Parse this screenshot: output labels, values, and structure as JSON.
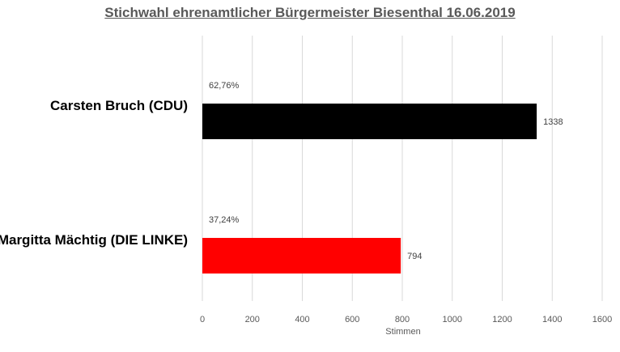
{
  "chart_data": {
    "type": "bar",
    "orientation": "horizontal",
    "title": "Stichwahl ehrenamtlicher Bürgermeister Biesenthal 16.06.2019",
    "xlabel": "Stimmen",
    "ylabel": "",
    "xlim": [
      0,
      1600
    ],
    "ticks": [
      "0",
      "200",
      "400",
      "600",
      "800",
      "1000",
      "1200",
      "1400",
      "1600"
    ],
    "grid": true,
    "categories": [
      "Carsten Bruch (CDU)",
      "Margitta Mächtig (DIE LINKE)"
    ],
    "values": [
      1338,
      794
    ],
    "value_labels": [
      "1338",
      "794"
    ],
    "percent_labels": [
      "62,76%",
      "37,24%"
    ],
    "colors": [
      "#000000",
      "#ff0000"
    ]
  }
}
